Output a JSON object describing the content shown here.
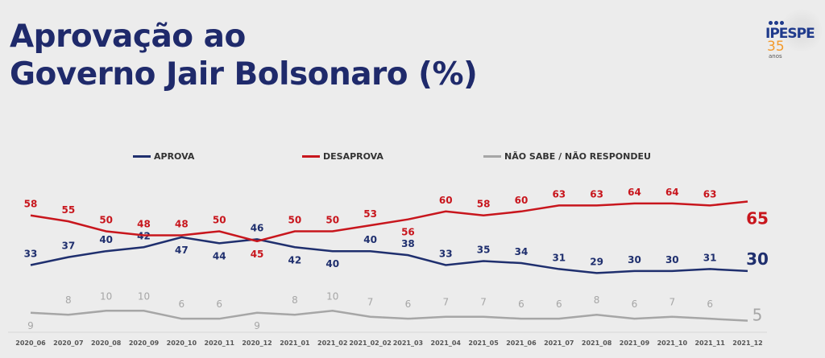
{
  "header": {
    "title_line1": "Aprovação ao",
    "title_line2": "Governo Jair Bolsonaro (%)",
    "logo_name": "IPESPE",
    "logo_years": "35",
    "logo_sub": "anos"
  },
  "chart_data": {
    "type": "line",
    "title": "Aprovação ao Governo Jair Bolsonaro (%)",
    "categories": [
      "2020_06",
      "2020_07",
      "2020_08",
      "2020_09",
      "2020_10",
      "2020_11",
      "2020_12",
      "2021_01",
      "2021_02",
      "2021_02_02",
      "2021_03",
      "2021_04",
      "2021_05",
      "2021_06",
      "2021_07",
      "2021_08",
      "2021_09",
      "2021_10",
      "2021_11",
      "2021_12"
    ],
    "series": [
      {
        "name": "APROVA",
        "color": "#1f2f6e",
        "values": [
          33,
          37,
          40,
          42,
          47,
          44,
          46,
          42,
          40,
          40,
          38,
          33,
          35,
          34,
          31,
          29,
          30,
          30,
          31,
          30
        ]
      },
      {
        "name": "DESAPROVA",
        "color": "#c8161d",
        "values": [
          58,
          55,
          50,
          48,
          48,
          50,
          45,
          50,
          50,
          53,
          56,
          60,
          58,
          60,
          63,
          63,
          64,
          64,
          63,
          65
        ]
      },
      {
        "name": "NÃO SABE / NÃO RESPONDEU",
        "color": "#a6a6a6",
        "values": [
          9,
          8,
          10,
          10,
          6,
          6,
          9,
          8,
          10,
          7,
          6,
          7,
          7,
          6,
          6,
          8,
          6,
          7,
          6,
          5
        ]
      }
    ],
    "legend": "top",
    "grid": false,
    "data_labels": true
  }
}
